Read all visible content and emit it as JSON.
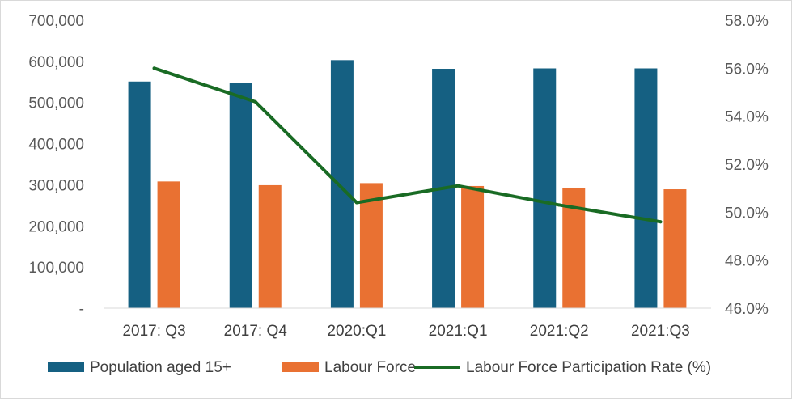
{
  "chart_data": {
    "type": "bar",
    "categories": [
      "2017: Q3",
      "2017: Q4",
      "2020:Q1",
      "2021:Q1",
      "2021:Q2",
      "2021:Q3"
    ],
    "series": [
      {
        "name": "Population aged 15+",
        "type": "bar",
        "axis": "left",
        "color": "#156082",
        "values": [
          551000,
          548000,
          603000,
          582000,
          583000,
          583000
        ]
      },
      {
        "name": "Labour Force",
        "type": "bar",
        "axis": "left",
        "color": "#E97132",
        "values": [
          308000,
          299000,
          304000,
          297000,
          293000,
          289000
        ]
      },
      {
        "name": "Labour Force Participation Rate (%)",
        "type": "line",
        "axis": "right",
        "color": "#196B24",
        "values": [
          56.0,
          54.6,
          50.4,
          51.1,
          50.3,
          49.6
        ]
      }
    ],
    "y_left": {
      "min": 0,
      "max": 700000,
      "ticks": [
        "-",
        "100,000",
        "200,000",
        "300,000",
        "400,000",
        "500,000",
        "600,000",
        "700,000"
      ]
    },
    "y_right": {
      "min": 46,
      "max": 58,
      "ticks": [
        "46.0%",
        "48.0%",
        "50.0%",
        "52.0%",
        "54.0%",
        "56.0%",
        "58.0%"
      ]
    },
    "grid": false,
    "legend_position": "bottom"
  }
}
